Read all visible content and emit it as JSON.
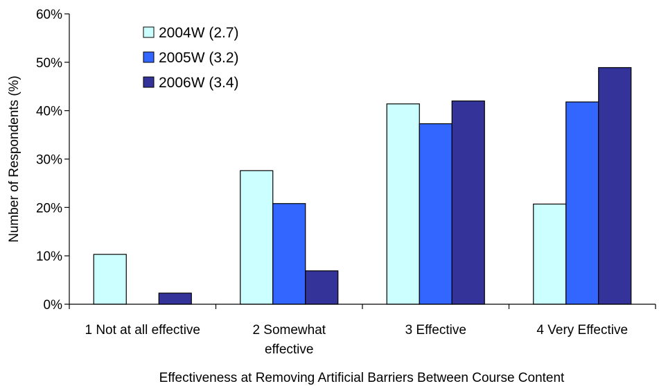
{
  "chart_data": {
    "type": "bar",
    "title": "",
    "xlabel": "Effectiveness at Removing Artificial Barriers Between Course Content",
    "ylabel": "Number of Respondents (%)",
    "ylim": [
      0,
      60
    ],
    "y_ticks": [
      "0%",
      "10%",
      "20%",
      "30%",
      "40%",
      "50%",
      "60%"
    ],
    "y_unit": "percent",
    "grid": false,
    "legend_position": "top-left",
    "categories": [
      [
        "1 Not at all effective"
      ],
      [
        "2 Somewhat",
        "effective"
      ],
      [
        "3 Effective"
      ],
      [
        "4 Very Effective"
      ]
    ],
    "series": [
      {
        "name": "2004W  (2.7)",
        "color": "#ccffff",
        "values": [
          10.3,
          27.6,
          41.4,
          20.7
        ]
      },
      {
        "name": "2005W  (3.2)",
        "color": "#3366ff",
        "values": [
          0,
          20.8,
          37.3,
          41.8
        ]
      },
      {
        "name": "2006W  (3.4)",
        "color": "#333399",
        "values": [
          2.3,
          6.9,
          42.0,
          48.9
        ]
      }
    ]
  }
}
